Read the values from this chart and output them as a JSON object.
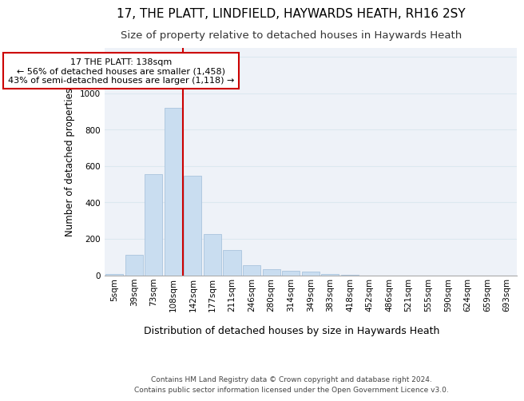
{
  "title1": "17, THE PLATT, LINDFIELD, HAYWARDS HEATH, RH16 2SY",
  "title2": "Size of property relative to detached houses in Haywards Heath",
  "xlabel": "Distribution of detached houses by size in Haywards Heath",
  "ylabel": "Number of detached properties",
  "bin_labels": [
    "5sqm",
    "39sqm",
    "73sqm",
    "108sqm",
    "142sqm",
    "177sqm",
    "211sqm",
    "246sqm",
    "280sqm",
    "314sqm",
    "349sqm",
    "383sqm",
    "418sqm",
    "452sqm",
    "486sqm",
    "521sqm",
    "555sqm",
    "590sqm",
    "624sqm",
    "659sqm",
    "693sqm"
  ],
  "bar_heights": [
    5,
    110,
    555,
    920,
    545,
    225,
    140,
    55,
    35,
    25,
    20,
    5,
    3,
    0,
    0,
    0,
    0,
    0,
    0,
    0,
    0
  ],
  "bar_color": "#c9ddf0",
  "bar_edge_color": "#a0bcd8",
  "vline_x": 3.5,
  "vline_color": "#cc0000",
  "annotation_text": "17 THE PLATT: 138sqm\n← 56% of detached houses are smaller (1,458)\n43% of semi-detached houses are larger (1,118) →",
  "annotation_box_color": "#ffffff",
  "annotation_box_edge": "#cc0000",
  "ylim": [
    0,
    1250
  ],
  "yticks": [
    0,
    200,
    400,
    600,
    800,
    1000,
    1200
  ],
  "grid_color": "#dce8f0",
  "bg_color": "#eef2f8",
  "footer": "Contains HM Land Registry data © Crown copyright and database right 2024.\nContains public sector information licensed under the Open Government Licence v3.0.",
  "title1_fontsize": 11,
  "title2_fontsize": 9.5,
  "xlabel_fontsize": 9,
  "ylabel_fontsize": 8.5,
  "tick_fontsize": 7.5,
  "annotation_fontsize": 8,
  "footer_fontsize": 6.5
}
